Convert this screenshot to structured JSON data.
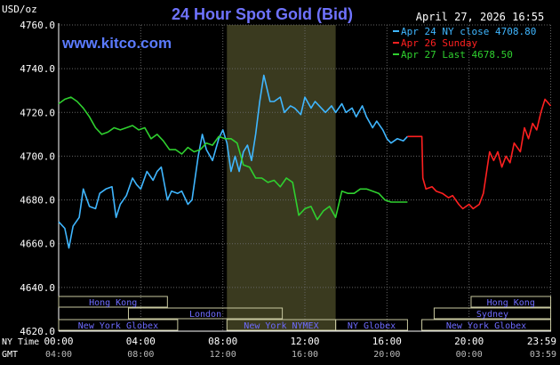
{
  "header": {
    "unit": "USD/oz",
    "title": "24 Hour Spot Gold (Bid)",
    "timestamp": "April 27, 2026 16:55",
    "site": "www.kitco.com"
  },
  "colors": {
    "background": "#000000",
    "axis": "#ffffff",
    "grid": "#666666",
    "title": "#6f73ff",
    "site": "#5b7bff",
    "shade": "#3a3a1f",
    "ny_close": "#3fb6ff",
    "sunday": "#ff2020",
    "last": "#2fd02f",
    "session_box": "#c8c8a0",
    "session_text": "#6f6cff"
  },
  "chart_data": {
    "type": "line",
    "title": "24 Hour Spot Gold (Bid)",
    "ylabel": "USD/oz",
    "ylim": [
      4620.0,
      4760.0
    ],
    "y_ticks": [
      "4760.0",
      "4740.0",
      "4720.0",
      "4700.0",
      "4680.0",
      "4660.0",
      "4640.0",
      "4620.0"
    ],
    "y_tick_values": [
      4760,
      4740,
      4720,
      4700,
      4680,
      4660,
      4640,
      4620
    ],
    "xlim": [
      0,
      24
    ],
    "x_ticks_ny": [
      "00:00",
      "04:00",
      "08:00",
      "12:00",
      "16:00",
      "20:00",
      "23:59"
    ],
    "x_ticks_gmt": [
      "04:00",
      "08:00",
      "12:00",
      "16:00",
      "20:00",
      "00:00",
      "03:59"
    ],
    "x_tick_values": [
      0,
      4,
      8,
      12,
      16,
      20,
      23.98
    ],
    "x_row_labels": [
      "NY Time",
      "GMT"
    ],
    "legend": [
      {
        "label": "Apr 24 NY close 4708.80",
        "color": "#3fb6ff"
      },
      {
        "label": "Apr 26 Sunday",
        "color": "#ff2020"
      },
      {
        "label": "Apr 27 Last 4678.50",
        "color": "#2fd02f"
      }
    ],
    "legend_position": "top-right",
    "grid": true,
    "shaded_range": [
      8.2,
      13.5
    ],
    "sessions": [
      {
        "label": "Hong Kong",
        "start": 0,
        "end": 5.3,
        "row": 1
      },
      {
        "label": "London",
        "start": 3.4,
        "end": 10.9,
        "row": 2
      },
      {
        "label": "New York Globex",
        "start": 0,
        "end": 5.8,
        "row": 3
      },
      {
        "label": "New York NYMEX",
        "start": 8.2,
        "end": 13.5,
        "row": 3
      },
      {
        "label": "NY Globex",
        "start": 13.5,
        "end": 17.0,
        "row": 3
      },
      {
        "label": "Hong Kong",
        "start": 20.1,
        "end": 23.98,
        "row": 1
      },
      {
        "label": "Sydney",
        "start": 18.3,
        "end": 23.98,
        "row": 2
      },
      {
        "label": "New York Globex",
        "start": 17.7,
        "end": 23.98,
        "row": 3
      }
    ],
    "series": [
      {
        "name": "Apr 24 NY close 4708.80",
        "color": "#3fb6ff",
        "x": [
          0,
          0.3,
          0.5,
          0.7,
          1.0,
          1.2,
          1.5,
          1.8,
          2.0,
          2.3,
          2.6,
          2.8,
          3.0,
          3.3,
          3.6,
          3.8,
          4.0,
          4.3,
          4.6,
          4.8,
          5.0,
          5.3,
          5.5,
          5.8,
          6.0,
          6.3,
          6.5,
          6.8,
          7.0,
          7.2,
          7.5,
          7.8,
          8.0,
          8.2,
          8.4,
          8.6,
          8.8,
          9.0,
          9.2,
          9.4,
          9.6,
          9.8,
          10.0,
          10.3,
          10.5,
          10.8,
          11.0,
          11.3,
          11.5,
          11.8,
          12.0,
          12.3,
          12.5,
          12.8,
          13.0,
          13.3,
          13.5,
          13.8,
          14.0,
          14.3,
          14.5,
          14.8,
          15.0,
          15.3,
          15.5,
          15.8,
          16.0,
          16.2,
          16.5,
          16.8,
          17.0
        ],
        "values": [
          4670,
          4667,
          4658,
          4668,
          4672,
          4685,
          4677,
          4676,
          4683,
          4685,
          4686,
          4672,
          4678,
          4682,
          4690,
          4687,
          4685,
          4693,
          4689,
          4693,
          4695,
          4680,
          4684,
          4683,
          4684,
          4678,
          4680,
          4700,
          4710,
          4703,
          4698,
          4708,
          4712,
          4706,
          4693,
          4700,
          4693,
          4702,
          4705,
          4698,
          4710,
          4725,
          4737,
          4725,
          4725,
          4727,
          4720,
          4723,
          4722,
          4719,
          4727,
          4722,
          4725,
          4722,
          4720,
          4723,
          4720,
          4724,
          4720,
          4722,
          4718,
          4723,
          4718,
          4713,
          4716,
          4712,
          4708,
          4706,
          4708,
          4707,
          4709
        ]
      },
      {
        "name": "Apr 26 Sunday",
        "color": "#ff2020",
        "x": [
          17.0,
          17.7,
          17.75,
          17.9,
          18.2,
          18.4,
          18.7,
          19.0,
          19.2,
          19.5,
          19.7,
          20.0,
          20.2,
          20.5,
          20.7,
          21.0,
          21.2,
          21.4,
          21.6,
          21.8,
          22.0,
          22.2,
          22.5,
          22.7,
          22.9,
          23.1,
          23.3,
          23.5,
          23.7,
          23.98
        ],
        "values": [
          4709,
          4709,
          4690,
          4685,
          4686,
          4684,
          4683,
          4681,
          4682,
          4678,
          4676,
          4678,
          4676,
          4678,
          4683,
          4702,
          4698,
          4702,
          4695,
          4700,
          4697,
          4706,
          4702,
          4713,
          4708,
          4715,
          4712,
          4720,
          4726,
          4723
        ]
      },
      {
        "name": "Apr 27 Last 4678.50",
        "color": "#2fd02f",
        "x": [
          0,
          0.3,
          0.6,
          0.9,
          1.2,
          1.5,
          1.8,
          2.1,
          2.4,
          2.7,
          3.0,
          3.3,
          3.6,
          3.9,
          4.2,
          4.5,
          4.8,
          5.1,
          5.4,
          5.7,
          6.0,
          6.3,
          6.6,
          6.9,
          7.2,
          7.5,
          7.8,
          8.1,
          8.4,
          8.7,
          9.0,
          9.3,
          9.6,
          9.9,
          10.2,
          10.5,
          10.8,
          11.1,
          11.4,
          11.7,
          12.0,
          12.3,
          12.6,
          12.9,
          13.2,
          13.5,
          13.8,
          14.1,
          14.4,
          14.7,
          15.0,
          15.3,
          15.6,
          15.9,
          16.2,
          16.5,
          16.8,
          17.0
        ],
        "values": [
          4724,
          4726,
          4727,
          4725,
          4722,
          4718,
          4713,
          4710,
          4711,
          4713,
          4712,
          4713,
          4714,
          4712,
          4713,
          4708,
          4710,
          4707,
          4703,
          4703,
          4701,
          4704,
          4702,
          4703,
          4706,
          4705,
          4709,
          4708,
          4708,
          4706,
          4696,
          4695,
          4690,
          4690,
          4688,
          4689,
          4686,
          4690,
          4688,
          4673,
          4676,
          4677,
          4671,
          4675,
          4677,
          4672,
          4684,
          4683,
          4683,
          4685,
          4685,
          4684,
          4683,
          4680,
          4679,
          4679,
          4679,
          4679
        ]
      }
    ]
  }
}
